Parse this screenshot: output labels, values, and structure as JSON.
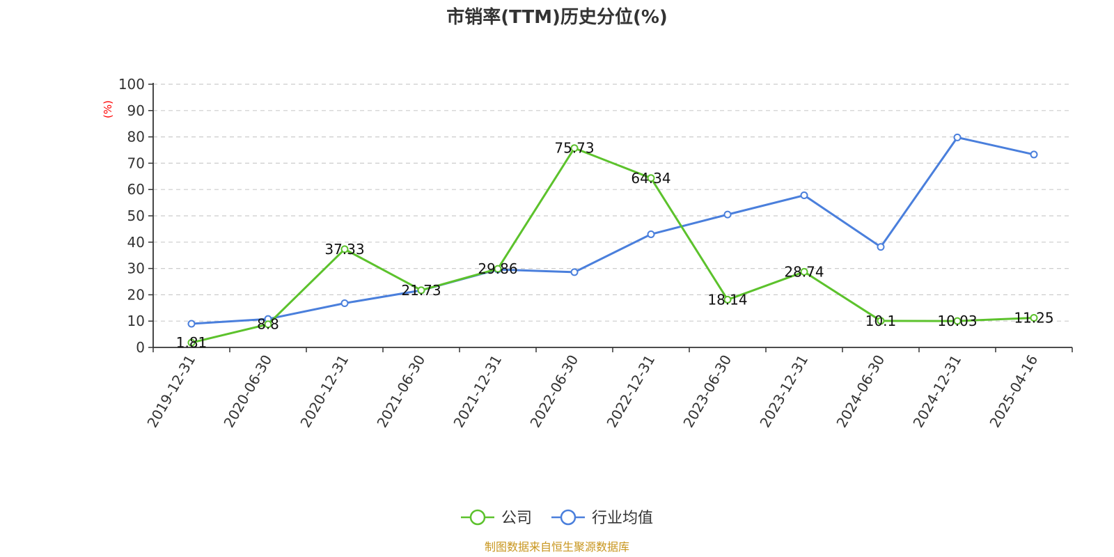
{
  "chart_data": {
    "type": "line",
    "title": "市销率(TTM)历史分位(%)",
    "ylabel": "(%)",
    "xlabel": "",
    "ylim": [
      0,
      100
    ],
    "yticks": [
      0,
      10,
      20,
      30,
      40,
      50,
      60,
      70,
      80,
      90,
      100
    ],
    "grid": true,
    "legend_position": "bottom-center",
    "categories": [
      "2019-12-31",
      "2020-06-30",
      "2020-12-31",
      "2021-06-30",
      "2021-12-31",
      "2022-06-30",
      "2022-12-31",
      "2023-06-30",
      "2023-12-31",
      "2024-06-30",
      "2024-12-31",
      "2025-04-16"
    ],
    "series": [
      {
        "name": "公司",
        "color": "#5cc22c",
        "values": [
          1.81,
          8.8,
          37.33,
          21.73,
          29.86,
          75.73,
          64.34,
          18.14,
          28.74,
          10.1,
          10.03,
          11.25
        ],
        "labels": [
          "1.81",
          "8.8",
          "37.33",
          "21.73",
          "29.86",
          "75.73",
          "64.34",
          "18.14",
          "28.74",
          "10.1",
          "10.03",
          "11.25"
        ]
      },
      {
        "name": "行业均值",
        "color": "#4a7fdc",
        "values": [
          9.0,
          10.8,
          16.8,
          21.7,
          29.6,
          28.6,
          43.0,
          50.5,
          57.8,
          38.2,
          79.8,
          73.3
        ]
      }
    ],
    "source": "制图数据来自恒生聚源数据库"
  }
}
